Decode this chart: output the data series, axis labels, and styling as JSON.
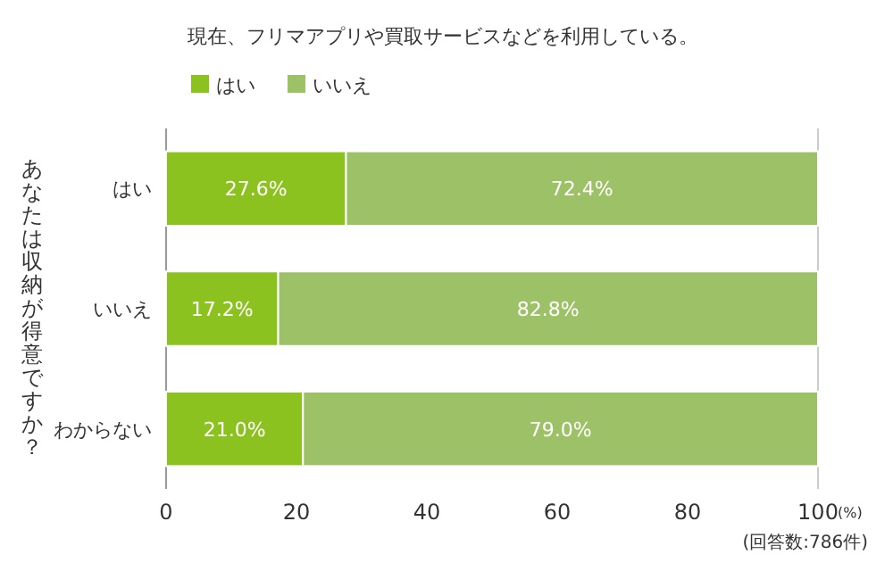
{
  "chart_data": {
    "type": "bar",
    "orientation": "horizontal",
    "stacked": true,
    "title": "現在、フリマアプリや買取サービスなどを利用している。",
    "ylabel": "あなたは収納が得意ですか？",
    "xlabel": "(%)",
    "categories": [
      "はい",
      "いいえ",
      "わからない"
    ],
    "series": [
      {
        "name": "はい",
        "color": "#8cc21f",
        "values": [
          27.6,
          17.2,
          21.0
        ],
        "value_labels": [
          "27.6%",
          "17.2%",
          "21.0%"
        ]
      },
      {
        "name": "いいえ",
        "color": "#9dc166",
        "values": [
          72.4,
          82.8,
          79.0
        ],
        "value_labels": [
          "72.4%",
          "82.8%",
          "79.0%"
        ]
      }
    ],
    "xlim": [
      0,
      100
    ],
    "xticks": [
      0,
      20,
      40,
      60,
      80,
      100
    ],
    "legend": "top left",
    "annotations": [
      "(回答数:786件)"
    ]
  }
}
